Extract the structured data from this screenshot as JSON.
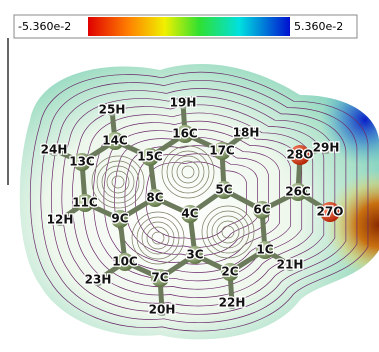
{
  "colorbar": {
    "min_label": "-5.360e-2",
    "max_label": "5.360e-2"
  },
  "atoms": [
    "25H",
    "19H",
    "18H",
    "14C",
    "16C",
    "24H",
    "15C",
    "17C",
    "28O",
    "29H",
    "13C",
    "5C",
    "26C",
    "8C",
    "11C",
    "6C",
    "27O",
    "4C",
    "12H",
    "9C",
    "1C",
    "3C",
    "10C",
    "21H",
    "2C",
    "23H",
    "7C",
    "22H",
    "20H"
  ]
}
